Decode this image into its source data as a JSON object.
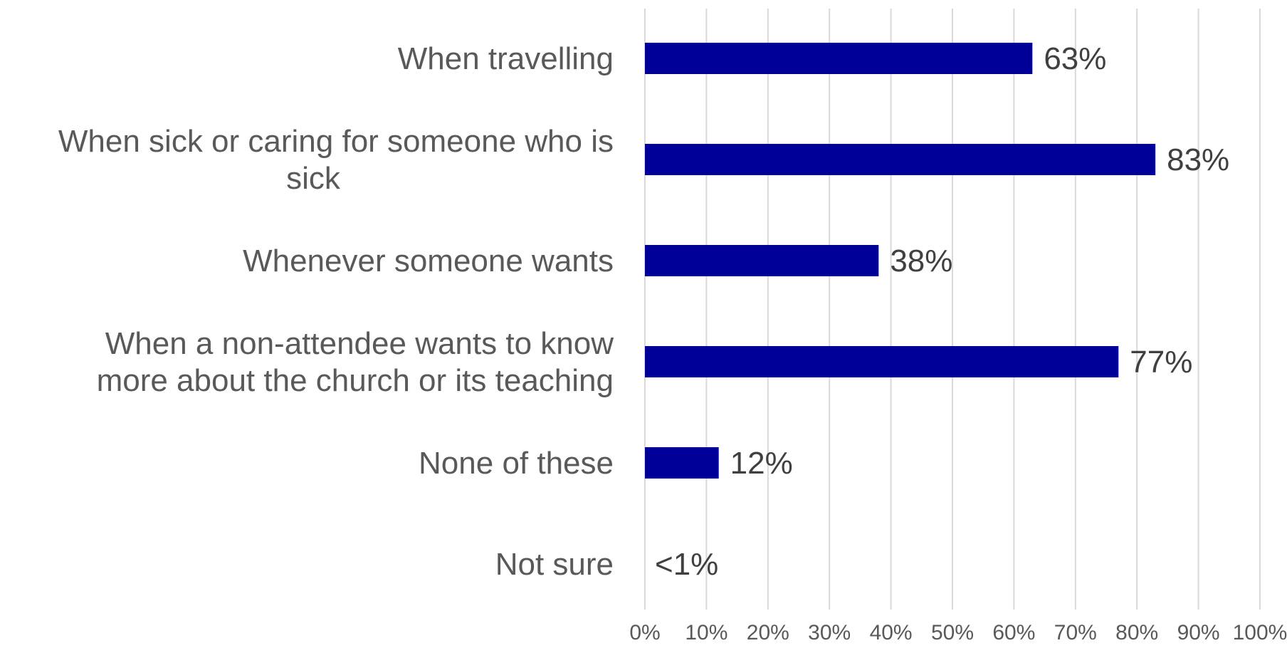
{
  "chart_data": {
    "type": "bar",
    "orientation": "horizontal",
    "title": "",
    "xlabel": "",
    "ylabel": "",
    "categories": [
      [
        "When travelling"
      ],
      [
        "When sick or caring for someone who is",
        "sick"
      ],
      [
        "Whenever someone wants"
      ],
      [
        "When a non-attendee wants to know",
        "more about the church or its teaching"
      ],
      [
        "None of these"
      ],
      [
        "Not sure"
      ]
    ],
    "values": [
      63,
      83,
      38,
      77,
      12,
      0.5
    ],
    "data_labels": [
      "63%",
      "83%",
      "38%",
      "77%",
      "12%",
      "<1%"
    ],
    "xlim": [
      0,
      100
    ],
    "x_ticks": [
      "0%",
      "10%",
      "20%",
      "30%",
      "40%",
      "50%",
      "60%",
      "70%",
      "80%",
      "90%",
      "100%"
    ],
    "grid": "vertical",
    "legend": "none",
    "colors": {
      "bar": "#000099",
      "gridline": "#d9d9d9",
      "category_text": "#595959",
      "value_text": "#404040"
    }
  }
}
